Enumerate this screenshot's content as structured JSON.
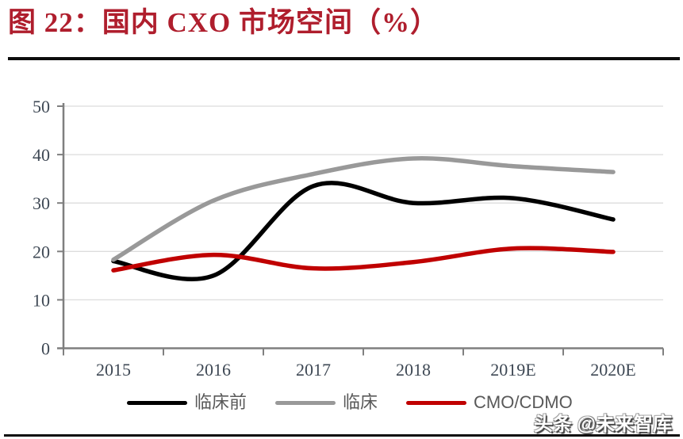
{
  "title": "图 22：国内 CXO 市场空间（%）",
  "colors": {
    "title": "#AF1E2D",
    "rule": "#0d0d0d",
    "axis": "#7f7f7f",
    "grid": "#dcdcdc",
    "tick_label": "#3e4854"
  },
  "watermark": "头条 @未来智库",
  "chart_data": {
    "type": "line",
    "title": "国内 CXO 市场空间（%）",
    "categories": [
      "2015",
      "2016",
      "2017",
      "2018",
      "2019E",
      "2020E"
    ],
    "series": [
      {
        "name": "临床前",
        "color": "#000000",
        "values": [
          18.0,
          15.0,
          33.5,
          30.0,
          31.0,
          26.6
        ]
      },
      {
        "name": "临床",
        "color": "#999999",
        "values": [
          18.3,
          30.5,
          36.0,
          39.2,
          37.6,
          36.4
        ]
      },
      {
        "name": "CMO/CDMO",
        "color": "#c00000",
        "values": [
          16.1,
          19.3,
          16.5,
          17.8,
          20.6,
          19.9
        ]
      }
    ],
    "ylim": [
      0,
      50
    ],
    "yticks": [
      0,
      10,
      20,
      30,
      40,
      50
    ],
    "xlabel": "",
    "ylabel": "",
    "grid": true,
    "smooth": true,
    "legend_position": "bottom"
  }
}
